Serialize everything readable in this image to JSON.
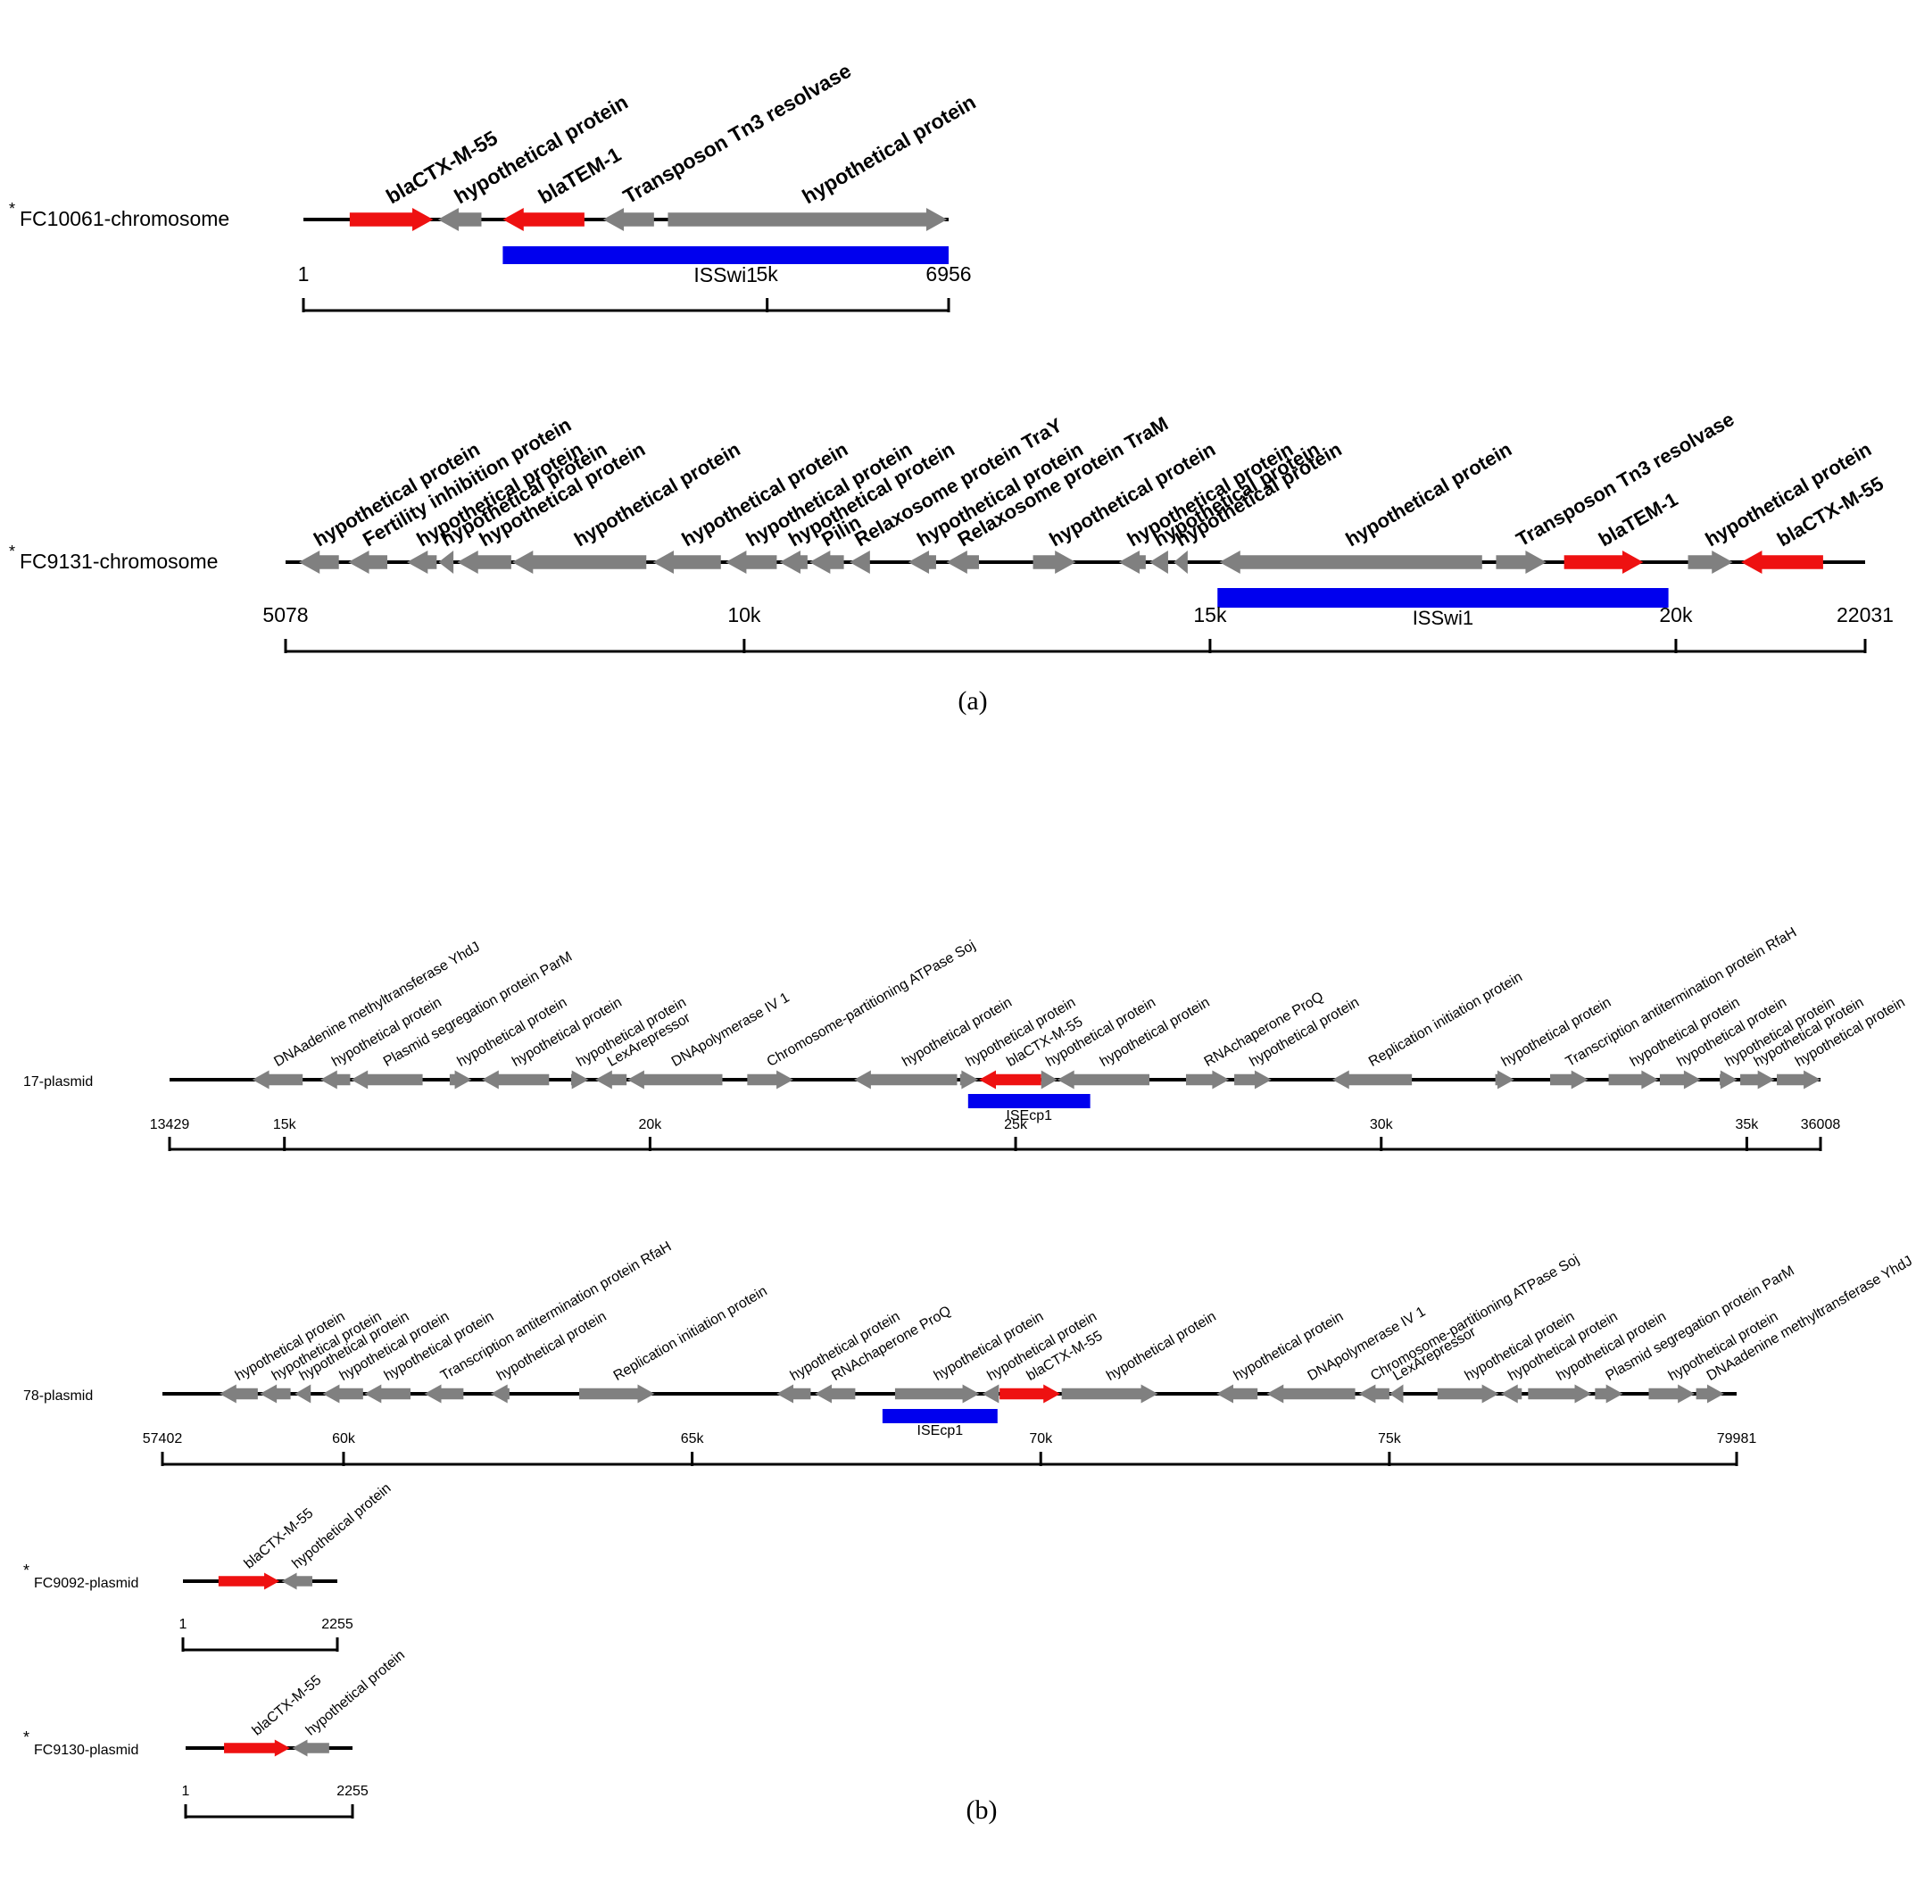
{
  "colors": {
    "gene": "#808080",
    "resistance": "#ee1111",
    "element": "#0000ee",
    "line": "#000000"
  },
  "panel_labels": [
    "(a)",
    "(b)"
  ],
  "tracks": [
    {
      "name": "FC10061-chromosome",
      "star": true,
      "start": 1,
      "end": 6956,
      "ticks": [
        {
          "v": 1,
          "l": "1"
        },
        {
          "v": 5000,
          "l": "5k"
        },
        {
          "v": 6956,
          "l": "6956"
        }
      ],
      "genes": [
        {
          "label": "blaCTX-M-55",
          "s": 500,
          "e": 1400,
          "dir": 1,
          "kind": "resistance"
        },
        {
          "label": "hypothetical protein",
          "s": 1450,
          "e": 1920,
          "dir": -1,
          "kind": "gene"
        },
        {
          "label": "blaTEM-1",
          "s": 2150,
          "e": 3030,
          "dir": -1,
          "kind": "resistance"
        },
        {
          "label": "Transposon Tn3 resolvase",
          "s": 3230,
          "e": 3780,
          "dir": -1,
          "kind": "gene"
        },
        {
          "label": "hypothetical protein",
          "s": 3930,
          "e": 6940,
          "dir": 1,
          "kind": "gene"
        }
      ],
      "elements": [
        {
          "label": "ISSwi1",
          "s": 2150,
          "e": 6956
        }
      ]
    },
    {
      "name": "FC9131-chromosome",
      "star": true,
      "start": 5078,
      "end": 22031,
      "ticks": [
        {
          "v": 5078,
          "l": "5078"
        },
        {
          "v": 10000,
          "l": "10k"
        },
        {
          "v": 15000,
          "l": "15k"
        },
        {
          "v": 20000,
          "l": "20k"
        },
        {
          "v": 22031,
          "l": "22031"
        }
      ],
      "genes": [
        {
          "label": "hypothetical protein",
          "s": 5220,
          "e": 5650,
          "dir": -1,
          "kind": "gene"
        },
        {
          "label": "Fertility inhibition protein",
          "s": 5750,
          "e": 6170,
          "dir": -1,
          "kind": "gene"
        },
        {
          "label": "hypothetical protein",
          "s": 6380,
          "e": 6700,
          "dir": -1,
          "kind": "gene"
        },
        {
          "label": "hypothetical protein",
          "s": 6720,
          "e": 6880,
          "dir": -1,
          "kind": "gene"
        },
        {
          "label": "hypothetical protein",
          "s": 6920,
          "e": 7500,
          "dir": -1,
          "kind": "gene"
        },
        {
          "label": "hypothetical protein",
          "s": 7510,
          "e": 8950,
          "dir": -1,
          "kind": "gene"
        },
        {
          "label": "hypothetical protein",
          "s": 9020,
          "e": 9750,
          "dir": -1,
          "kind": "gene"
        },
        {
          "label": "hypothetical protein",
          "s": 9800,
          "e": 10350,
          "dir": -1,
          "kind": "gene"
        },
        {
          "label": "hypothetical protein",
          "s": 10380,
          "e": 10680,
          "dir": -1,
          "kind": "gene"
        },
        {
          "label": "Pilin",
          "s": 10700,
          "e": 11070,
          "dir": -1,
          "kind": "gene"
        },
        {
          "label": "Relaxosome protein TraY",
          "s": 11130,
          "e": 11350,
          "dir": -1,
          "kind": "gene"
        },
        {
          "label": "hypothetical protein",
          "s": 11760,
          "e": 12060,
          "dir": -1,
          "kind": "gene"
        },
        {
          "label": "Relaxosome protein TraM",
          "s": 12170,
          "e": 12520,
          "dir": -1,
          "kind": "gene"
        },
        {
          "label": "hypothetical protein",
          "s": 13100,
          "e": 13560,
          "dir": 1,
          "kind": "gene"
        },
        {
          "label": "hypothetical protein",
          "s": 14020,
          "e": 14310,
          "dir": -1,
          "kind": "gene"
        },
        {
          "label": "hypothetical protein",
          "s": 14350,
          "e": 14550,
          "dir": -1,
          "kind": "gene"
        },
        {
          "label": "hypothetical protein",
          "s": 14610,
          "e": 14760,
          "dir": -1,
          "kind": "gene"
        },
        {
          "label": "hypothetical protein",
          "s": 15100,
          "e": 17920,
          "dir": -1,
          "kind": "gene"
        },
        {
          "label": "Transposon Tn3 resolvase",
          "s": 18070,
          "e": 18610,
          "dir": 1,
          "kind": "gene"
        },
        {
          "label": "blaTEM-1",
          "s": 18800,
          "e": 19650,
          "dir": 1,
          "kind": "resistance"
        },
        {
          "label": "hypothetical protein",
          "s": 20130,
          "e": 20610,
          "dir": 1,
          "kind": "gene"
        },
        {
          "label": "blaCTX-M-55",
          "s": 20700,
          "e": 21580,
          "dir": -1,
          "kind": "resistance"
        }
      ],
      "elements": [
        {
          "label": "ISSwi1",
          "s": 15080,
          "e": 19920
        }
      ]
    },
    {
      "name": "17-plasmid",
      "star": false,
      "start": 13429,
      "end": 36008,
      "ticks": [
        {
          "v": 13429,
          "l": "13429"
        },
        {
          "v": 15000,
          "l": "15k"
        },
        {
          "v": 20000,
          "l": "20k"
        },
        {
          "v": 25000,
          "l": "25k"
        },
        {
          "v": 30000,
          "l": "30k"
        },
        {
          "v": 35000,
          "l": "35k"
        },
        {
          "v": 36008,
          "l": "36008"
        }
      ],
      "genes": [
        {
          "label": "DNAadenine methyltransferase YhdJ",
          "s": 14560,
          "e": 15250,
          "dir": -1,
          "kind": "gene"
        },
        {
          "label": "hypothetical protein",
          "s": 15490,
          "e": 15900,
          "dir": -1,
          "kind": "gene"
        },
        {
          "label": "Plasmid segregation protein ParM",
          "s": 15910,
          "e": 16890,
          "dir": -1,
          "kind": "gene"
        },
        {
          "label": "hypothetical protein",
          "s": 17260,
          "e": 17560,
          "dir": 1,
          "kind": "gene"
        },
        {
          "label": "hypothetical protein",
          "s": 17700,
          "e": 18620,
          "dir": -1,
          "kind": "gene"
        },
        {
          "label": "hypothetical protein",
          "s": 18920,
          "e": 19160,
          "dir": 1,
          "kind": "gene"
        },
        {
          "label": "LexArepressor",
          "s": 19250,
          "e": 19680,
          "dir": -1,
          "kind": "gene"
        },
        {
          "label": "DNApolymerase IV 1",
          "s": 19690,
          "e": 20990,
          "dir": -1,
          "kind": "gene"
        },
        {
          "label": "Chromosome-partitioning ATPase Soj",
          "s": 21330,
          "e": 21960,
          "dir": 1,
          "kind": "gene"
        },
        {
          "label": "hypothetical protein",
          "s": 22790,
          "e": 24200,
          "dir": -1,
          "kind": "gene"
        },
        {
          "label": "hypothetical protein",
          "s": 24240,
          "e": 24490,
          "dir": 1,
          "kind": "gene"
        },
        {
          "label": "blaCTX-M-55",
          "s": 24500,
          "e": 25350,
          "dir": -1,
          "kind": "resistance"
        },
        {
          "label": "hypothetical protein",
          "s": 25350,
          "e": 25570,
          "dir": 1,
          "kind": "gene"
        },
        {
          "label": "hypothetical protein",
          "s": 25570,
          "e": 26830,
          "dir": -1,
          "kind": "gene"
        },
        {
          "label": "RNAchaperone ProQ",
          "s": 27330,
          "e": 27920,
          "dir": 1,
          "kind": "gene"
        },
        {
          "label": "hypothetical protein",
          "s": 27990,
          "e": 28500,
          "dir": 1,
          "kind": "gene"
        },
        {
          "label": "Replication initiation protein",
          "s": 29330,
          "e": 30420,
          "dir": -1,
          "kind": "gene"
        },
        {
          "label": "hypothetical protein",
          "s": 31560,
          "e": 31820,
          "dir": 1,
          "kind": "gene"
        },
        {
          "label": "Transcription antitermination protein RfaH",
          "s": 32310,
          "e": 32830,
          "dir": 1,
          "kind": "gene"
        },
        {
          "label": "hypothetical protein",
          "s": 33110,
          "e": 33790,
          "dir": 1,
          "kind": "gene"
        },
        {
          "label": "hypothetical protein",
          "s": 33810,
          "e": 34370,
          "dir": 1,
          "kind": "gene"
        },
        {
          "label": "hypothetical protein",
          "s": 34630,
          "e": 34870,
          "dir": 1,
          "kind": "gene"
        },
        {
          "label": "hypothetical protein",
          "s": 34910,
          "e": 35380,
          "dir": 1,
          "kind": "gene"
        },
        {
          "label": "hypothetical protein",
          "s": 35410,
          "e": 36008,
          "dir": 1,
          "kind": "gene"
        }
      ],
      "elements": [
        {
          "label": "ISEcp1",
          "s": 24350,
          "e": 26020
        }
      ]
    },
    {
      "name": "78-plasmid",
      "star": false,
      "start": 57402,
      "end": 79981,
      "ticks": [
        {
          "v": 57402,
          "l": "57402"
        },
        {
          "v": 60000,
          "l": "60k"
        },
        {
          "v": 65000,
          "l": "65k"
        },
        {
          "v": 70000,
          "l": "70k"
        },
        {
          "v": 75000,
          "l": "75k"
        },
        {
          "v": 79981,
          "l": "79981"
        }
      ],
      "genes": [
        {
          "label": "hypothetical protein",
          "s": 58220,
          "e": 58770,
          "dir": -1,
          "kind": "gene"
        },
        {
          "label": "hypothetical protein",
          "s": 58800,
          "e": 59240,
          "dir": -1,
          "kind": "gene"
        },
        {
          "label": "hypothetical protein",
          "s": 59300,
          "e": 59530,
          "dir": -1,
          "kind": "gene"
        },
        {
          "label": "hypothetical protein",
          "s": 59700,
          "e": 60280,
          "dir": -1,
          "kind": "gene"
        },
        {
          "label": "hypothetical protein",
          "s": 60300,
          "e": 60960,
          "dir": -1,
          "kind": "gene"
        },
        {
          "label": "Transcription antitermination protein RfaH",
          "s": 61160,
          "e": 61720,
          "dir": -1,
          "kind": "gene"
        },
        {
          "label": "hypothetical protein",
          "s": 62110,
          "e": 62380,
          "dir": -1,
          "kind": "gene"
        },
        {
          "label": "Replication initiation protein",
          "s": 63380,
          "e": 64460,
          "dir": 1,
          "kind": "gene"
        },
        {
          "label": "hypothetical protein",
          "s": 66210,
          "e": 66700,
          "dir": -1,
          "kind": "gene"
        },
        {
          "label": "RNAchaperone ProQ",
          "s": 66760,
          "e": 67340,
          "dir": -1,
          "kind": "gene"
        },
        {
          "label": "hypothetical protein",
          "s": 67910,
          "e": 69120,
          "dir": 1,
          "kind": "gene"
        },
        {
          "label": "hypothetical protein",
          "s": 69160,
          "e": 69400,
          "dir": -1,
          "kind": "gene"
        },
        {
          "label": "blaCTX-M-55",
          "s": 69410,
          "e": 70280,
          "dir": 1,
          "kind": "resistance"
        },
        {
          "label": "hypothetical protein",
          "s": 70300,
          "e": 71680,
          "dir": 1,
          "kind": "gene"
        },
        {
          "label": "hypothetical protein",
          "s": 72520,
          "e": 73110,
          "dir": -1,
          "kind": "gene"
        },
        {
          "label": "DNApolymerase IV 1",
          "s": 73240,
          "e": 74510,
          "dir": -1,
          "kind": "gene"
        },
        {
          "label": "Chromosome-partitioning ATPase Soj",
          "s": 74560,
          "e": 75000,
          "dir": -1,
          "kind": "gene"
        },
        {
          "label": "LexArepressor",
          "s": 75000,
          "e": 75200,
          "dir": -1,
          "kind": "gene"
        },
        {
          "label": "hypothetical protein",
          "s": 75690,
          "e": 76570,
          "dir": 1,
          "kind": "gene"
        },
        {
          "label": "hypothetical protein",
          "s": 76600,
          "e": 76900,
          "dir": -1,
          "kind": "gene"
        },
        {
          "label": "hypothetical protein",
          "s": 76990,
          "e": 77900,
          "dir": 1,
          "kind": "gene"
        },
        {
          "label": "Plasmid segregation protein ParM",
          "s": 77950,
          "e": 78350,
          "dir": 1,
          "kind": "gene"
        },
        {
          "label": "hypothetical protein",
          "s": 78720,
          "e": 79380,
          "dir": 1,
          "kind": "gene"
        },
        {
          "label": "DNAadenine methyltransferase YhdJ",
          "s": 79400,
          "e": 79800,
          "dir": 1,
          "kind": "gene"
        }
      ],
      "elements": [
        {
          "label": "ISEcp1",
          "s": 67730,
          "e": 69380
        }
      ]
    },
    {
      "name": "FC9092-plasmid",
      "star": true,
      "start": 1,
      "end": 2255,
      "ticks": [
        {
          "v": 1,
          "l": "1"
        },
        {
          "v": 2255,
          "l": "2255"
        }
      ],
      "genes": [
        {
          "label": "blaCTX-M-55",
          "s": 520,
          "e": 1410,
          "dir": 1,
          "kind": "resistance"
        },
        {
          "label": "hypothetical protein",
          "s": 1440,
          "e": 1890,
          "dir": -1,
          "kind": "gene"
        }
      ],
      "elements": []
    },
    {
      "name": "FC9130-plasmid",
      "star": true,
      "start": 1,
      "end": 2255,
      "ticks": [
        {
          "v": 1,
          "l": "1"
        },
        {
          "v": 2255,
          "l": "2255"
        }
      ],
      "genes": [
        {
          "label": "blaCTX-M-55",
          "s": 520,
          "e": 1410,
          "dir": 1,
          "kind": "resistance"
        },
        {
          "label": "hypothetical protein",
          "s": 1440,
          "e": 1940,
          "dir": -1,
          "kind": "gene"
        }
      ],
      "elements": []
    }
  ]
}
